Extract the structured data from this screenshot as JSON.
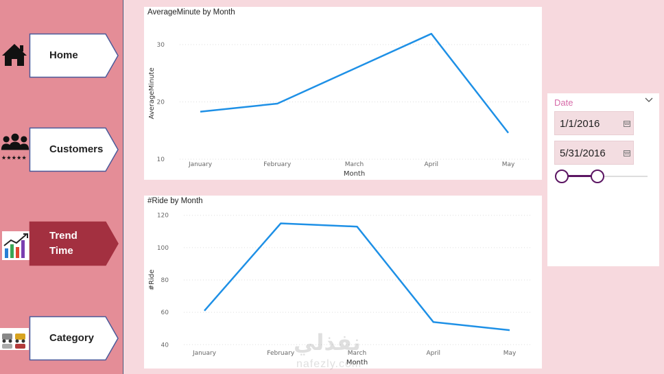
{
  "nav": {
    "items": [
      {
        "label": "Home",
        "icon": "home-icon"
      },
      {
        "label": "Customers",
        "icon": "customers-rating-icon"
      },
      {
        "label": "Trend\nTime",
        "icon": "trend-chart-icon"
      },
      {
        "label": "Category",
        "icon": "category-cars-icon"
      }
    ],
    "active_index": 2
  },
  "colors": {
    "sidebar": "#e48d97",
    "button_fill": "#ffffff",
    "button_border": "#4a5a9a",
    "active_fill": "#a33040",
    "line": "#1e90e6",
    "slicer_accent": "#5b1562",
    "slicer_title": "#d66aa8"
  },
  "chart_data": [
    {
      "type": "line",
      "title": "AverageMinute by Month",
      "xlabel": "Month",
      "ylabel": "AverageMinute",
      "categories": [
        "January",
        "February",
        "March",
        "April",
        "May"
      ],
      "values": [
        18.3,
        19.7,
        25.8,
        31.9,
        14.6
      ],
      "yticks": [
        10,
        20,
        30
      ],
      "ylim": [
        10,
        33
      ],
      "grid": true
    },
    {
      "type": "line",
      "title": "#Ride by Month",
      "xlabel": "Month",
      "ylabel": "#Ride",
      "categories": [
        "January",
        "February",
        "March",
        "April",
        "May"
      ],
      "values": [
        61,
        115,
        113,
        54,
        49
      ],
      "yticks": [
        40,
        60,
        80,
        100,
        120
      ],
      "ylim": [
        38,
        122
      ],
      "grid": true
    }
  ],
  "slicer": {
    "title": "Date",
    "start_date": "1/1/2016",
    "end_date": "5/31/2016"
  },
  "watermark": {
    "arabic": "نفذلي",
    "latin": "nafezly.com"
  }
}
